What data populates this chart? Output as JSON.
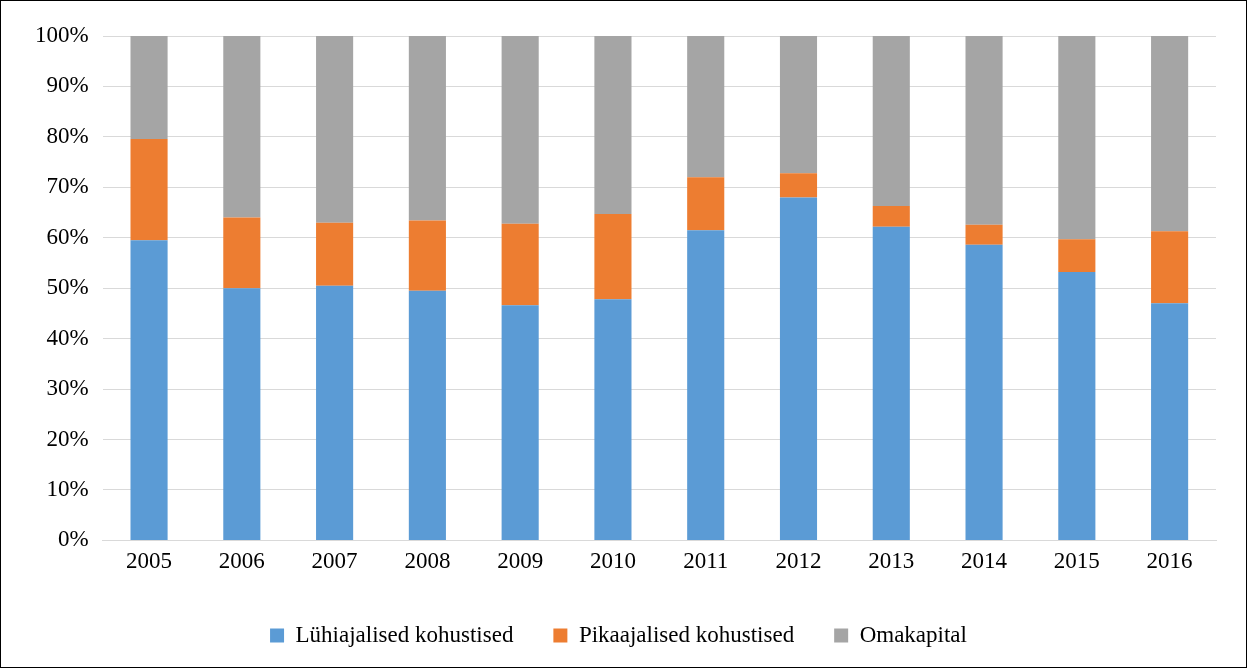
{
  "chart_data": {
    "type": "bar",
    "stacked": true,
    "categories": [
      "2005",
      "2006",
      "2007",
      "2008",
      "2009",
      "2010",
      "2011",
      "2012",
      "2013",
      "2014",
      "2015",
      "2016"
    ],
    "series": [
      {
        "name": "Lühiajalised kohustised",
        "color": "#5b9bd5",
        "values": [
          59.5,
          50,
          50.5,
          49.5,
          46.6,
          47.8,
          61.5,
          68,
          62.2,
          58.6,
          53.2,
          47
        ]
      },
      {
        "name": "Pikaajalised kohustised",
        "color": "#ed7d31",
        "values": [
          20.1,
          14,
          12.5,
          13.9,
          16.2,
          16.9,
          10.5,
          4.8,
          4.1,
          4,
          6.5,
          14.3
        ]
      },
      {
        "name": "Omakapital",
        "color": "#a5a5a5",
        "values": [
          20.4,
          36,
          37,
          36.6,
          37.2,
          35.3,
          28,
          27.2,
          33.7,
          37.4,
          40.3,
          38.7
        ]
      }
    ],
    "ylim": [
      0,
      100
    ],
    "yticks": [
      {
        "value": 0,
        "label": "0%"
      },
      {
        "value": 10,
        "label": "10%"
      },
      {
        "value": 20,
        "label": "20%"
      },
      {
        "value": 30,
        "label": "30%"
      },
      {
        "value": 40,
        "label": "40%"
      },
      {
        "value": 50,
        "label": "50%"
      },
      {
        "value": 60,
        "label": "60%"
      },
      {
        "value": 70,
        "label": "70%"
      },
      {
        "value": 80,
        "label": "80%"
      },
      {
        "value": 90,
        "label": "90%"
      },
      {
        "value": 100,
        "label": "100%"
      }
    ],
    "grid": "y",
    "legend": "bottom"
  }
}
